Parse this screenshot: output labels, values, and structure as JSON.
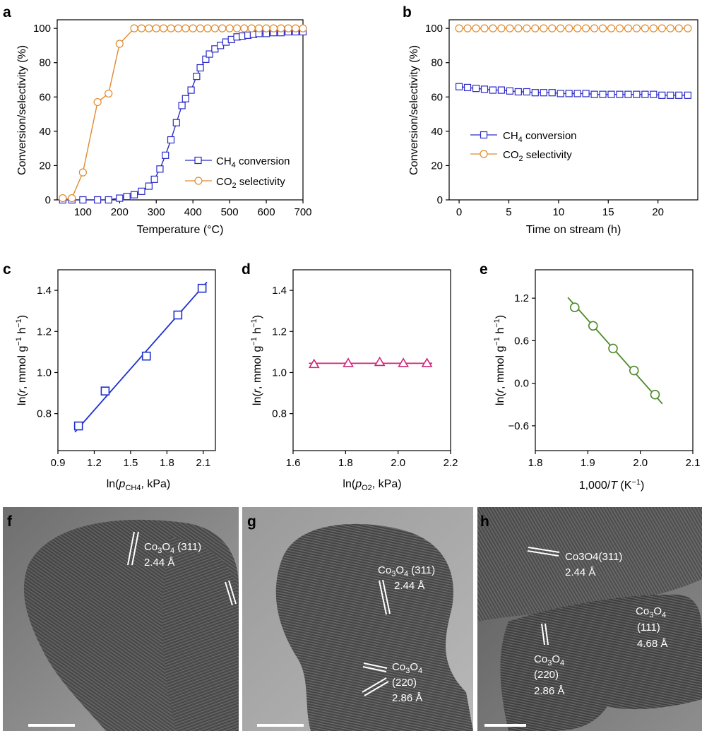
{
  "chart_data": [
    {
      "panel": "a",
      "type": "line",
      "xlabel": "Temperature (°C)",
      "ylabel": "Conversion/selectivity (%)",
      "xlim": [
        30,
        700
      ],
      "ylim": [
        0,
        105
      ],
      "xticks": [
        100,
        200,
        300,
        400,
        500,
        600,
        700
      ],
      "yticks": [
        0,
        20,
        40,
        60,
        80,
        100
      ],
      "legend_position": "lower-right",
      "series": [
        {
          "name": "CH4 conversion",
          "color": "#2b2bc8",
          "marker": "square",
          "x": [
            45,
            70,
            100,
            140,
            170,
            200,
            220,
            240,
            260,
            280,
            295,
            310,
            325,
            340,
            355,
            370,
            380,
            395,
            410,
            420,
            435,
            445,
            460,
            475,
            490,
            505,
            520,
            535,
            550,
            565,
            580,
            600,
            620,
            640,
            660,
            680,
            700
          ],
          "y": [
            0,
            0,
            0,
            0,
            0,
            1,
            2,
            3,
            5,
            8,
            12,
            18,
            26,
            35,
            45,
            55,
            59,
            64,
            72,
            77,
            82,
            85,
            88,
            90,
            92,
            93.5,
            95,
            95.5,
            96,
            96.5,
            97,
            97,
            97.5,
            97.5,
            98,
            98,
            98
          ]
        },
        {
          "name": "CO2 selectivity",
          "color": "#e08a2e",
          "marker": "circle",
          "x": [
            45,
            70,
            100,
            140,
            170,
            200,
            240,
            260,
            280,
            300,
            320,
            340,
            360,
            380,
            400,
            420,
            440,
            460,
            480,
            500,
            520,
            540,
            560,
            580,
            600,
            620,
            640,
            660,
            680,
            700
          ],
          "y": [
            1,
            1,
            16,
            57,
            62,
            91,
            100,
            100,
            100,
            100,
            100,
            100,
            100,
            100,
            100,
            100,
            100,
            100,
            100,
            100,
            100,
            100,
            100,
            100,
            100,
            100,
            100,
            100,
            100,
            100
          ]
        }
      ]
    },
    {
      "panel": "b",
      "type": "line",
      "xlabel": "Time on stream (h)",
      "ylabel": "Conversion/selectivity (%)",
      "xlim": [
        -1,
        24
      ],
      "ylim": [
        0,
        105
      ],
      "xticks": [
        0,
        5,
        10,
        15,
        20
      ],
      "yticks": [
        0,
        20,
        40,
        60,
        80,
        100
      ],
      "legend_position": "center-left",
      "series": [
        {
          "name": "CH4 conversion",
          "color": "#2b2bc8",
          "marker": "square",
          "x": [
            0,
            0.85,
            1.7,
            2.55,
            3.4,
            4.25,
            5.1,
            5.95,
            6.8,
            7.65,
            8.5,
            9.35,
            10.2,
            11.05,
            11.9,
            12.75,
            13.6,
            14.45,
            15.3,
            16.15,
            17,
            17.85,
            18.7,
            19.55,
            20.4,
            21.25,
            22.1,
            23
          ],
          "y": [
            66,
            65.5,
            65,
            64.5,
            64,
            64,
            63.5,
            63,
            63,
            62.5,
            62.5,
            62.5,
            62,
            62,
            62,
            62,
            61.5,
            61.5,
            61.5,
            61.5,
            61.5,
            61.5,
            61.5,
            61.5,
            61,
            61,
            61,
            61
          ]
        },
        {
          "name": "CO2 selectivity",
          "color": "#e08a2e",
          "marker": "circle",
          "x": [
            0,
            0.85,
            1.7,
            2.55,
            3.4,
            4.25,
            5.1,
            5.95,
            6.8,
            7.65,
            8.5,
            9.35,
            10.2,
            11.05,
            11.9,
            12.75,
            13.6,
            14.45,
            15.3,
            16.15,
            17,
            17.85,
            18.7,
            19.55,
            20.4,
            21.25,
            22.1,
            23
          ],
          "y": [
            100,
            100,
            100,
            100,
            100,
            100,
            100,
            100,
            100,
            100,
            100,
            100,
            100,
            100,
            100,
            100,
            100,
            100,
            100,
            100,
            100,
            100,
            100,
            100,
            100,
            100,
            100,
            100
          ]
        }
      ]
    },
    {
      "panel": "c",
      "type": "scatter",
      "xlabel": "ln(pCH4, kPa)",
      "ylabel": "ln(r, mmol g−1 h−1)",
      "xlim": [
        0.9,
        2.2
      ],
      "ylim": [
        0.62,
        1.5
      ],
      "xticks": [
        0.9,
        1.2,
        1.5,
        1.8,
        2.1
      ],
      "yticks": [
        0.8,
        1.0,
        1.2,
        1.4
      ],
      "series": [
        {
          "color": "#1f2fd0",
          "marker": "square",
          "x": [
            1.07,
            1.29,
            1.63,
            1.89,
            2.09
          ],
          "y": [
            0.74,
            0.91,
            1.08,
            1.28,
            1.41
          ],
          "fit": {
            "x": [
              1.04,
              2.13
            ],
            "y": [
              0.71,
              1.44
            ]
          }
        }
      ]
    },
    {
      "panel": "d",
      "type": "scatter",
      "xlabel": "ln(pO2, kPa)",
      "ylabel": "ln(r, mmol g−1 h−1)",
      "xlim": [
        1.6,
        2.2
      ],
      "ylim": [
        0.62,
        1.5
      ],
      "xticks": [
        1.6,
        1.8,
        2.0,
        2.2
      ],
      "yticks": [
        0.8,
        1.0,
        1.2,
        1.4
      ],
      "series": [
        {
          "color": "#d0267a",
          "marker": "triangle",
          "x": [
            1.68,
            1.81,
            1.93,
            2.02,
            2.11
          ],
          "y": [
            1.04,
            1.045,
            1.05,
            1.045,
            1.045
          ],
          "fit": {
            "x": [
              1.66,
              2.13
            ],
            "y": [
              1.045,
              1.045
            ]
          }
        }
      ]
    },
    {
      "panel": "e",
      "type": "scatter",
      "xlabel": "1,000/T (K−1)",
      "ylabel": "ln(r, mmol g−1 h−1)",
      "xlim": [
        1.8,
        2.1
      ],
      "ylim": [
        -0.95,
        1.6
      ],
      "xticks": [
        1.8,
        1.9,
        2.0,
        2.1
      ],
      "yticks": [
        -0.6,
        0.0,
        0.6,
        1.2
      ],
      "series": [
        {
          "color": "#4e8a2a",
          "marker": "circle",
          "x": [
            1.875,
            1.91,
            1.948,
            1.988,
            2.028
          ],
          "y": [
            1.07,
            0.81,
            0.49,
            0.18,
            -0.16
          ],
          "fit": {
            "x": [
              1.862,
              2.042
            ],
            "y": [
              1.21,
              -0.29
            ]
          }
        }
      ]
    }
  ],
  "tem_panels": [
    {
      "letter": "f",
      "annotations": [
        {
          "formula": "Co",
          "sub": "3",
          "formula2": "O",
          "sub2": "4",
          "hkl": " (311)",
          "spacing": "2.44 Å"
        }
      ]
    },
    {
      "letter": "g",
      "annotations": [
        {
          "formula": "Co",
          "sub": "3",
          "formula2": "O",
          "sub2": "4",
          "hkl": " (311)",
          "spacing": "2.44 Å"
        },
        {
          "formula": "Co",
          "sub": "3",
          "formula2": "O",
          "sub2": "4",
          "hkl": "(220)",
          "spacing": "2.86 Å"
        }
      ]
    },
    {
      "letter": "h",
      "annotations": [
        {
          "text": "Co3O4(311)",
          "spacing": "2.44 Å"
        },
        {
          "formula": "Co",
          "sub": "3",
          "formula2": "O",
          "sub2": "4",
          "hkl": "(111)",
          "spacing": "4.68 Å"
        },
        {
          "formula": "Co",
          "sub": "3",
          "formula2": "O",
          "sub2": "4",
          "hkl": "(220)",
          "spacing": "2.86 Å"
        }
      ]
    }
  ],
  "legend_texts": {
    "ch4_main": "CH",
    "ch4_sub": "4",
    "ch4_rest": " conversion",
    "co2_main": "CO",
    "co2_sub": "2",
    "co2_rest": " selectivity"
  },
  "axis_text": {
    "c_x_pre": "ln(",
    "c_x_var": "p",
    "c_x_sub": "CH4",
    "c_x_post": ", kPa)",
    "d_x_sub": "O2",
    "y_pre": "ln(",
    "y_var": "r",
    "y_mid": ", mmol g",
    "y_sup1": "−1",
    "y_h": " h",
    "y_sup2": "−1",
    "y_post": ")",
    "e_x_pre": "1,000/",
    "e_x_var": "T",
    "e_x_unit": " (K",
    "e_x_sup": "−1",
    "e_x_post": ")"
  }
}
